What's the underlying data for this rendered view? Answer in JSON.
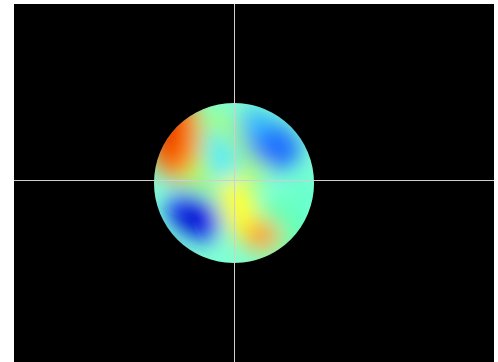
{
  "viewport": {
    "background_color": "#000000",
    "crosshair_color": "#cfcfcf",
    "colormap": "jet",
    "colormap_stops": [
      "#00008b",
      "#0000ff",
      "#00bfff",
      "#00ffff",
      "#7fff7f",
      "#ffff00",
      "#ff8c00",
      "#ff0000"
    ]
  }
}
